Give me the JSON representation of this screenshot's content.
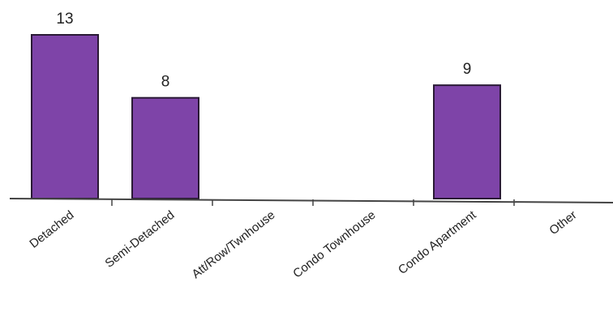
{
  "chart_data": {
    "type": "bar",
    "title": "",
    "xlabel": "",
    "ylabel": "",
    "categories": [
      "Detached",
      "Semi-Detached",
      "Att/Row/Twnhouse",
      "Condo Townhouse",
      "Condo Apartment",
      "Other"
    ],
    "values": [
      13,
      8,
      0,
      0,
      9,
      0
    ],
    "data_labels": [
      "13",
      "8",
      "",
      "",
      "9",
      ""
    ],
    "ylim": [
      0,
      13
    ],
    "grid": false,
    "legend": "none",
    "bar_color": "#7e44a8"
  }
}
